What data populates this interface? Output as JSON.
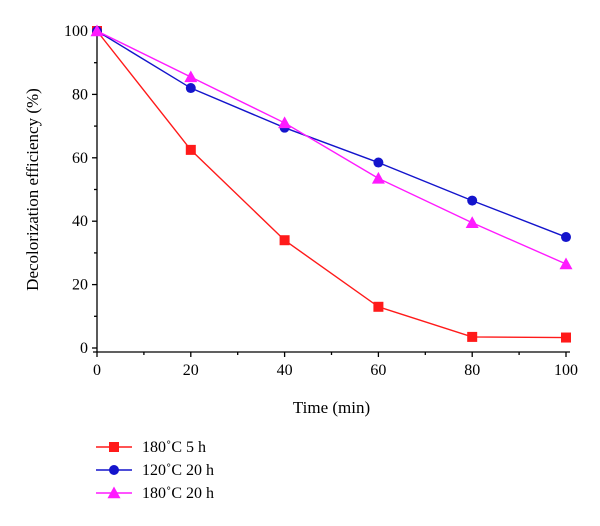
{
  "chart_data": {
    "type": "line",
    "xlabel": "Time (min)",
    "ylabel": "Decolorization efficiency (%)",
    "xlim": [
      0,
      100
    ],
    "ylim": [
      0,
      100
    ],
    "x_ticks": [
      0,
      20,
      40,
      60,
      80,
      100
    ],
    "y_ticks": [
      0,
      20,
      40,
      60,
      80,
      100
    ],
    "grid": false,
    "legend_position": "bottom-left, below plot",
    "series": [
      {
        "name": "180˚C 5 h",
        "color": "#ff1a1a",
        "marker": "square",
        "x": [
          0,
          20,
          40,
          60,
          80,
          100
        ],
        "values": [
          100,
          62.5,
          34,
          13,
          3.5,
          3.3
        ]
      },
      {
        "name": "120˚C 20 h",
        "color": "#1414cc",
        "marker": "circle",
        "x": [
          0,
          20,
          40,
          60,
          80,
          100
        ],
        "values": [
          100,
          82,
          69.5,
          58.5,
          46.5,
          35
        ]
      },
      {
        "name": "180˚C 20 h",
        "color": "#ff1aff",
        "marker": "triangle",
        "x": [
          0,
          20,
          40,
          60,
          80,
          100
        ],
        "values": [
          100,
          85.5,
          71,
          53.5,
          39.5,
          26.5
        ]
      }
    ]
  }
}
